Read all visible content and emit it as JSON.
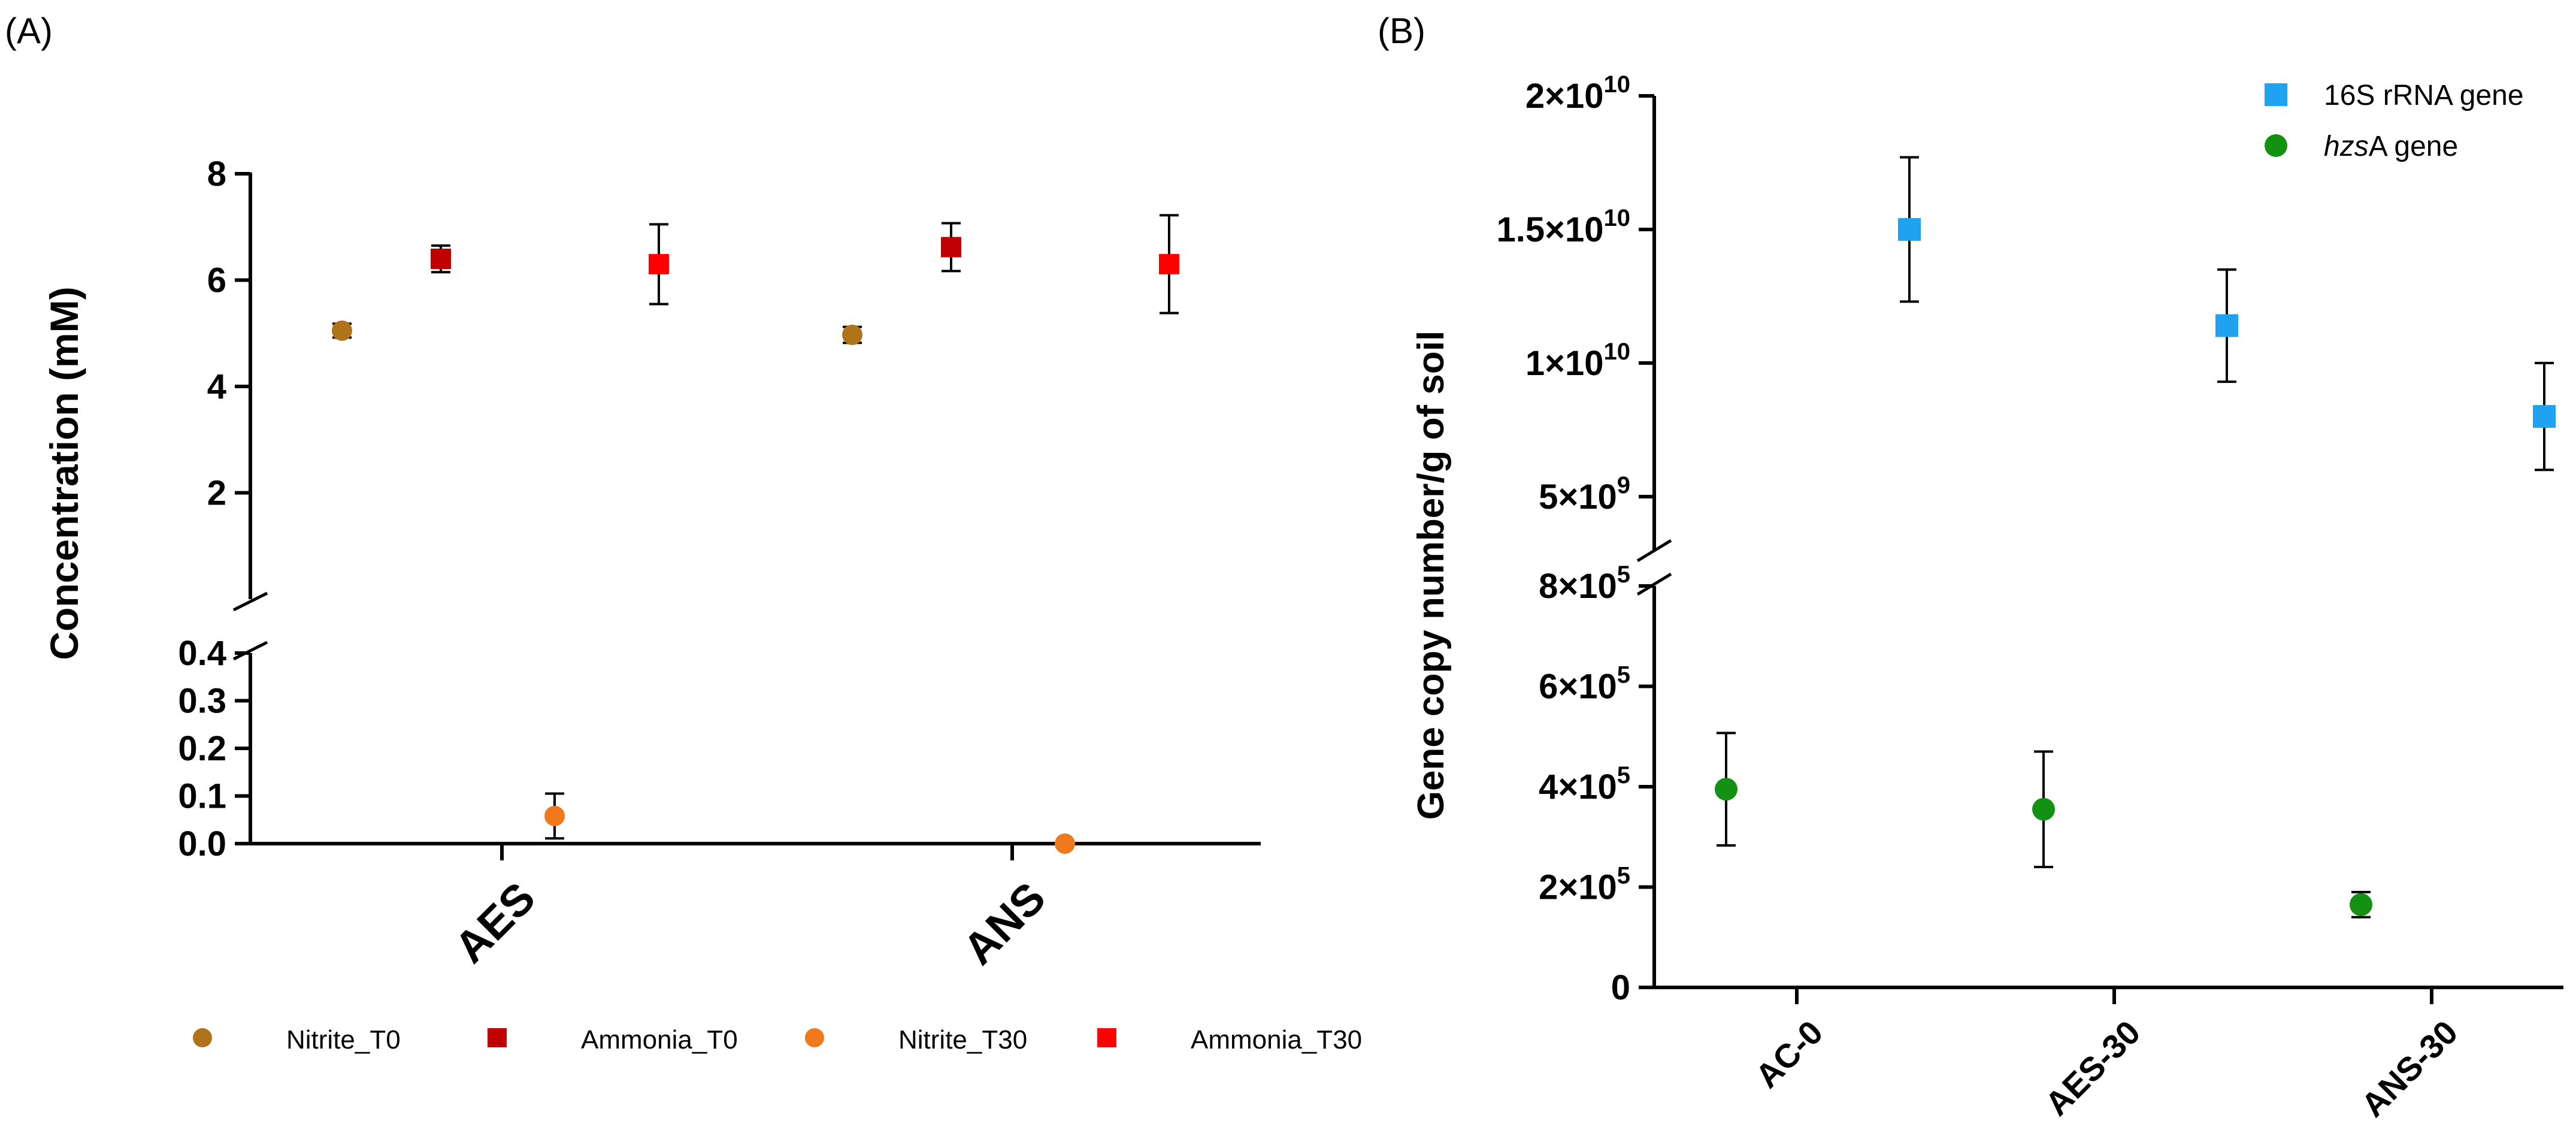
{
  "chart_data": [
    {
      "panel_label": "(A)",
      "type": "scatter",
      "ylabel": "Concentration (mM)",
      "categories": [
        "AES",
        "ANS"
      ],
      "upper_axis": {
        "ylim": [
          0,
          8
        ],
        "ticks": [
          "2",
          "4",
          "6",
          "8"
        ]
      },
      "lower_axis": {
        "ylim": [
          0,
          0.4
        ],
        "ticks": [
          "0.0",
          "0.1",
          "0.2",
          "0.3",
          "0.4"
        ]
      },
      "legend_position": "bottom",
      "colors": {
        "Nitrite_T0": "#b0731a",
        "Ammonia_T0": "#c00000",
        "Nitrite_T30": "#f07a1b",
        "Ammonia_T30": "#ff0000"
      },
      "series": [
        {
          "name": "Nitrite_T0",
          "marker": "circle",
          "values": [
            5.05,
            4.97
          ],
          "errors": [
            0.13,
            0.15
          ]
        },
        {
          "name": "Ammonia_T0",
          "marker": "square",
          "values": [
            6.4,
            6.62
          ],
          "errors": [
            0.25,
            0.45
          ]
        },
        {
          "name": "Nitrite_T30",
          "marker": "circle",
          "values": [
            0.058,
            0.0
          ],
          "errors": [
            0.047,
            0.0
          ]
        },
        {
          "name": "Ammonia_T30",
          "marker": "square",
          "values": [
            6.3,
            6.3
          ],
          "errors": [
            0.75,
            0.92
          ]
        }
      ]
    },
    {
      "panel_label": "(B)",
      "type": "scatter",
      "ylabel": "Gene copy number/g of soil",
      "categories": [
        "AC-0",
        "AES-30",
        "ANS-30"
      ],
      "upper_axis": {
        "ylim": [
          3000000000,
          20000000000
        ],
        "ticks": [
          {
            "mantissa": "5",
            "exp": "9"
          },
          {
            "mantissa": "1",
            "exp": "10"
          },
          {
            "mantissa": "1.5",
            "exp": "10"
          },
          {
            "mantissa": "2",
            "exp": "10"
          }
        ]
      },
      "lower_axis": {
        "ylim": [
          0,
          800000
        ],
        "ticks": [
          {
            "mantissa": "0",
            "exp": ""
          },
          {
            "mantissa": "2",
            "exp": "5"
          },
          {
            "mantissa": "4",
            "exp": "5"
          },
          {
            "mantissa": "6",
            "exp": "5"
          },
          {
            "mantissa": "8",
            "exp": "5"
          }
        ]
      },
      "legend_position": "top-right",
      "colors": {
        "16S rRNA gene": "#1fa3f0",
        "hzsA gene": "#129112"
      },
      "series": [
        {
          "name": "16S rRNA gene",
          "legend_label": "16S rRNA gene",
          "marker": "square",
          "values": [
            15000000000,
            11400000000,
            8000000000
          ],
          "errors": [
            2700000000,
            2100000000,
            2000000000
          ]
        },
        {
          "name": "hzsA gene",
          "legend_prefix": "hzs",
          "legend_suffix": "A gene",
          "marker": "circle",
          "values": [
            395000,
            355000,
            165000
          ],
          "errors": [
            112000,
            115000,
            25000
          ]
        }
      ]
    }
  ]
}
